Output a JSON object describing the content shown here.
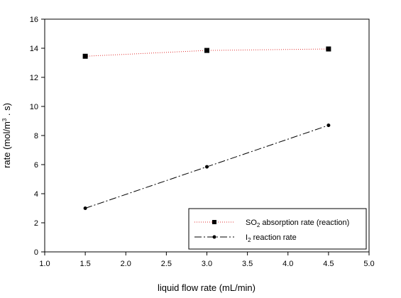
{
  "chart_data": {
    "type": "line",
    "title": "",
    "xlabel": "liquid flow rate (mL/min)",
    "ylabel": {
      "pre": "rate (mol/m",
      "sup": "3",
      "post": " . s)"
    },
    "xlim": [
      1.0,
      5.0
    ],
    "ylim": [
      0,
      16
    ],
    "x_ticks": [
      "1.0",
      "1.5",
      "2.0",
      "2.5",
      "3.0",
      "3.5",
      "4.0",
      "4.5",
      "5.0"
    ],
    "y_ticks": [
      "0",
      "2",
      "4",
      "6",
      "8",
      "10",
      "12",
      "14",
      "16"
    ],
    "grid": false,
    "legend_position": "bottom-right",
    "series": [
      {
        "name": "SO2 absorption rate (reaction)",
        "legend": {
          "main": "SO",
          "sub": "2",
          "rest": " absorption rate (reaction)"
        },
        "x": [
          1.5,
          3.0,
          4.5
        ],
        "y": [
          13.45,
          13.85,
          13.95
        ],
        "color": "#e03030",
        "marker": "square",
        "line_style": "dotted"
      },
      {
        "name": "I2 reaction rate",
        "legend": {
          "main": "I",
          "sub": "2",
          "rest": " reaction rate"
        },
        "x": [
          1.5,
          3.0,
          4.5
        ],
        "y": [
          3.0,
          5.85,
          8.7
        ],
        "color": "#000000",
        "marker": "circle",
        "line_style": "dash-dot"
      }
    ]
  }
}
